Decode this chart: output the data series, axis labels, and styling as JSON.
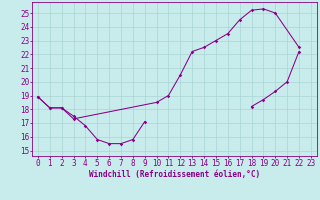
{
  "bg_color": "#c8ecec",
  "grid_color": "#aad4d4",
  "line_color": "#880088",
  "xlabel": "Windchill (Refroidissement éolien,°C)",
  "xlim": [
    -0.5,
    23.5
  ],
  "ylim": [
    14.6,
    25.8
  ],
  "yticks": [
    15,
    16,
    17,
    18,
    19,
    20,
    21,
    22,
    23,
    24,
    25
  ],
  "xticks": [
    0,
    1,
    2,
    3,
    4,
    5,
    6,
    7,
    8,
    9,
    10,
    11,
    12,
    13,
    14,
    15,
    16,
    17,
    18,
    19,
    20,
    21,
    22,
    23
  ],
  "seg1_x": [
    0,
    1,
    2,
    3,
    4,
    5,
    6,
    7,
    8,
    9
  ],
  "seg1_y": [
    18.9,
    18.1,
    18.1,
    17.5,
    16.8,
    15.8,
    15.5,
    15.5,
    15.8,
    17.1
  ],
  "seg2_x": [
    0,
    1,
    2,
    3,
    10,
    11,
    12,
    13,
    14,
    15,
    16,
    17,
    18,
    19,
    20,
    22
  ],
  "seg2_y": [
    18.9,
    18.1,
    18.1,
    17.3,
    18.5,
    19.0,
    20.5,
    22.2,
    22.5,
    23.0,
    23.5,
    24.5,
    25.2,
    25.3,
    25.0,
    22.5
  ],
  "seg3_x": [
    18,
    19,
    20,
    21,
    22
  ],
  "seg3_y": [
    18.2,
    18.7,
    19.3,
    20.0,
    22.2
  ],
  "tick_fontsize": 5.5,
  "xlabel_fontsize": 5.5
}
